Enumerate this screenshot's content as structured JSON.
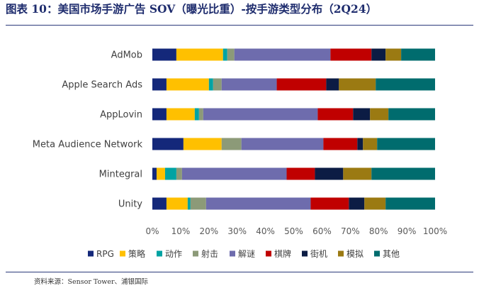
{
  "header": {
    "title": "图表 10：美国市场手游广告 SOV（曝光比重）-按手游类型分布（2Q24）"
  },
  "footer": {
    "source": "资料来源：Sensor Tower、浦银国际"
  },
  "chart_data": {
    "type": "bar",
    "orientation": "horizontal",
    "stacked": "percent",
    "categories": [
      "AdMob",
      "Apple Search Ads",
      "AppLovin",
      "Meta Audience Network",
      "Mintegral",
      "Unity"
    ],
    "series": [
      {
        "name": "RPG",
        "color": "#14287a",
        "values": [
          8.5,
          5,
          5,
          11,
          1.5,
          5
        ]
      },
      {
        "name": "策略",
        "color": "#ffc000",
        "values": [
          16.5,
          15,
          10,
          13.5,
          3,
          7.5
        ]
      },
      {
        "name": "动作",
        "color": "#00a3a3",
        "values": [
          1.5,
          1.5,
          1.5,
          0,
          4,
          1
        ]
      },
      {
        "name": "射击",
        "color": "#8c9a78",
        "values": [
          2.5,
          3,
          1.5,
          7,
          2,
          5.5
        ]
      },
      {
        "name": "解谜",
        "color": "#6e6cad",
        "values": [
          34,
          19.5,
          40.5,
          29,
          37,
          37
        ]
      },
      {
        "name": "棋牌",
        "color": "#c00000",
        "values": [
          14.5,
          17.5,
          12.5,
          12,
          10,
          13.5
        ]
      },
      {
        "name": "街机",
        "color": "#0c1c44",
        "values": [
          5,
          4.5,
          6,
          2,
          10,
          5.5
        ]
      },
      {
        "name": "模拟",
        "color": "#9b7a12",
        "values": [
          5.5,
          13,
          6.5,
          5,
          10,
          7.5
        ]
      },
      {
        "name": "其他",
        "color": "#006c6e",
        "values": [
          12,
          21,
          16.5,
          20.5,
          22.5,
          17.5
        ]
      }
    ],
    "x_ticks": [
      "0%",
      "10%",
      "20%",
      "30%",
      "40%",
      "50%",
      "60%",
      "70%",
      "80%",
      "90%",
      "100%"
    ],
    "xlim": [
      0,
      100
    ],
    "grid": false,
    "legend": "bottom"
  }
}
